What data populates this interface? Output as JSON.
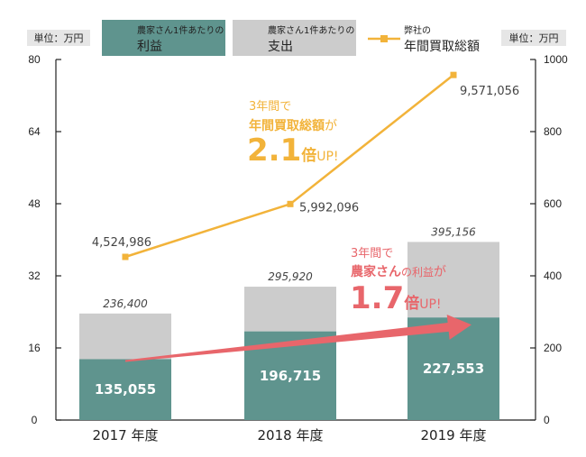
{
  "colors": {
    "profit": "#5f948e",
    "expense": "#cccccc",
    "line": "#f2b33a",
    "arrow": "#e8666b",
    "highlight_orange": "#f2b33a",
    "highlight_red": "#e8666b"
  },
  "legend": {
    "profit": {
      "line1": "農家さん1件あたりの",
      "line2": "利益"
    },
    "expense": {
      "line1": "農家さん1件あたりの",
      "line2": "支出"
    },
    "line": {
      "line1": "弊社の",
      "line2": "年間買取総額"
    }
  },
  "unit_left": "単位：万円",
  "unit_right": "単位：万円",
  "annotation_purchase": {
    "line1": "3年間で",
    "line2_bold": "年間買取総額",
    "line2_suffix": "が",
    "big": "2.1",
    "suffix_bold": "倍",
    "suffix_up": "UP!"
  },
  "annotation_profit": {
    "line1": "3年間で",
    "line2_bold": "農家さん",
    "line2_mid": "の利益",
    "line2_suffix": "が",
    "big": "1.7",
    "suffix_bold": "倍",
    "suffix_up": "UP!"
  },
  "chart_data": {
    "type": "bar",
    "stacked": true,
    "categories": [
      "2017 年度",
      "2018 年度",
      "2019 年度"
    ],
    "series": [
      {
        "name": "農家さん1件あたりの利益",
        "values": [
          135055,
          196715,
          227553
        ],
        "labels": [
          "135,055",
          "196,715",
          "227,553"
        ]
      },
      {
        "name": "農家さん1件あたりの支出",
        "values": [
          101345,
          99205,
          167603
        ]
      }
    ],
    "totals": [
      236400,
      295920,
      395156
    ],
    "total_labels": [
      "236,400",
      "295,920",
      "395,156"
    ],
    "line_series": {
      "name": "弊社の年間買取総額",
      "values": [
        4524986,
        5992096,
        9571056
      ],
      "labels": [
        "4,524,986",
        "5,992,096",
        "9,571,056"
      ],
      "axis": "right"
    },
    "left_axis": {
      "ticks": [
        "0",
        "16",
        "32",
        "48",
        "64",
        "80"
      ],
      "ylim": [
        0,
        80
      ],
      "unit": "万円"
    },
    "right_axis": {
      "ticks": [
        "0",
        "200",
        "400",
        "600",
        "800",
        "1000"
      ],
      "ylim": [
        0,
        1000
      ],
      "unit": "万円"
    }
  }
}
